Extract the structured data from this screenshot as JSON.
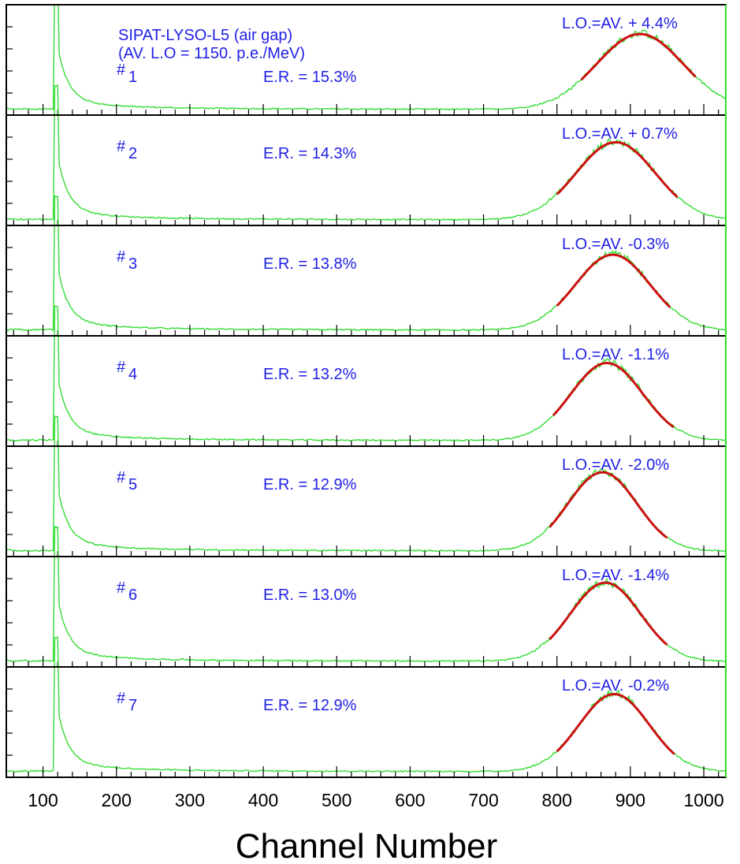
{
  "chart_data": {
    "type": "line",
    "layout": "stacked panels",
    "header": {
      "title": "SIPAT-LYSO-L5 (air gap)",
      "subtitle": "(AV. L.O = 1150. p.e./MeV)"
    },
    "xlabel": "Channel Number",
    "xlim": [
      50,
      1030
    ],
    "xticks": [
      "100",
      "200",
      "300",
      "400",
      "500",
      "600",
      "700",
      "800",
      "900",
      "1000"
    ],
    "colors": {
      "histogram": "#33dd33",
      "fit": "#cc1111",
      "text": "#2020e6",
      "axes": "#000000"
    },
    "panels": [
      {
        "label": "#1",
        "id": "1",
        "er": "E.R. = 15.3%",
        "lo": "L.O.=AV. + 4.4%",
        "peak_channel": 913,
        "sigma": 59,
        "fit_range": [
          833,
          990
        ],
        "peak_height": 0.72,
        "edge_channel": 120,
        "edge_height": 1.0
      },
      {
        "label": "#2",
        "id": "2",
        "er": "E.R. = 14.3%",
        "lo": "L.O.=AV. + 0.7%",
        "peak_channel": 880,
        "sigma": 54,
        "fit_range": [
          800,
          965
        ],
        "peak_height": 0.74,
        "edge_channel": 120,
        "edge_height": 1.0
      },
      {
        "label": "#3",
        "id": "3",
        "er": "E.R. = 13.8%",
        "lo": "L.O.=AV.  -0.3%",
        "peak_channel": 876,
        "sigma": 51,
        "fit_range": [
          800,
          955
        ],
        "peak_height": 0.72,
        "edge_channel": 120,
        "edge_height": 1.0
      },
      {
        "label": "#4",
        "id": "4",
        "er": "E.R. = 13.2%",
        "lo": "L.O.=AV.  -1.1%",
        "peak_channel": 868,
        "sigma": 49,
        "fit_range": [
          795,
          960
        ],
        "peak_height": 0.74,
        "edge_channel": 120,
        "edge_height": 1.0
      },
      {
        "label": "#5",
        "id": "5",
        "er": "E.R. = 12.9%",
        "lo": "L.O.=AV.  -2.0%",
        "peak_channel": 862,
        "sigma": 47,
        "fit_range": [
          790,
          950
        ],
        "peak_height": 0.75,
        "edge_channel": 120,
        "edge_height": 1.0
      },
      {
        "label": "#6",
        "id": "6",
        "er": "E.R. = 13.0%",
        "lo": "L.O.=AV.  -1.4%",
        "peak_channel": 866,
        "sigma": 48,
        "fit_range": [
          790,
          950
        ],
        "peak_height": 0.75,
        "edge_channel": 120,
        "edge_height": 1.0
      },
      {
        "label": "#7",
        "id": "7",
        "er": "E.R. = 12.9%",
        "lo": "L.O.=AV.  -0.2%",
        "peak_channel": 878,
        "sigma": 48,
        "fit_range": [
          800,
          960
        ],
        "peak_height": 0.74,
        "edge_channel": 120,
        "edge_height": 1.0
      }
    ]
  }
}
